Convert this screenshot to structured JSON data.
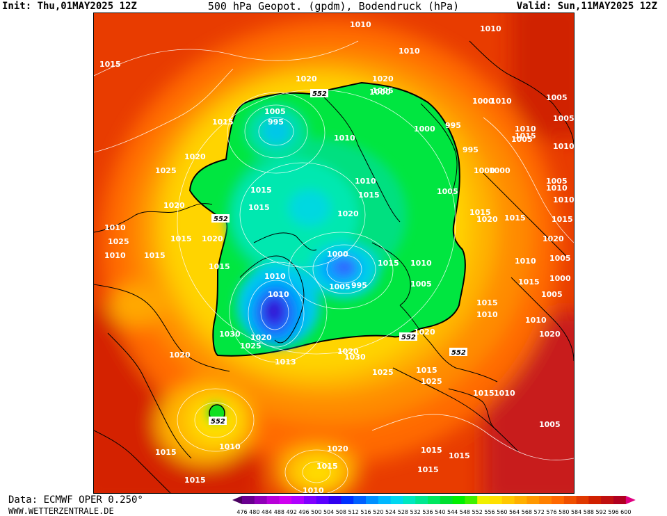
{
  "header": {
    "init": "Init: Thu,01MAY2025 12Z",
    "title": "500 hPa Geopot. (gpdm), Bodendruck (hPa)",
    "valid": "Valid: Sun,11MAY2025 12Z"
  },
  "footer": {
    "data_source": "Data: ECMWF OPER 0.250°",
    "website": "WWW.WETTERZENTRALE.DE"
  },
  "colorbar": {
    "ticks": [
      "476",
      "480",
      "484",
      "488",
      "492",
      "496",
      "500",
      "504",
      "508",
      "512",
      "516",
      "520",
      "524",
      "528",
      "532",
      "536",
      "540",
      "544",
      "548",
      "552",
      "556",
      "560",
      "564",
      "568",
      "572",
      "576",
      "580",
      "584",
      "588",
      "592",
      "596",
      "600"
    ],
    "colors": [
      "#4a0060",
      "#6a0090",
      "#9000b8",
      "#b800d8",
      "#d000f0",
      "#b000ff",
      "#8000ff",
      "#5a00ff",
      "#3000f0",
      "#0030ff",
      "#0060ff",
      "#0090ff",
      "#00b8ff",
      "#00d8f0",
      "#00e8c0",
      "#00e890",
      "#00e860",
      "#00e030",
      "#00f000",
      "#40f000",
      "#f0f000",
      "#ffe000",
      "#ffc800",
      "#ffb000",
      "#ff9800",
      "#ff8000",
      "#ff6800",
      "#f05000",
      "#e03800",
      "#d02000",
      "#c01010",
      "#b00020",
      "#e00080"
    ]
  },
  "map": {
    "geopotential_contour_label": "552",
    "pressure_labels": [
      {
        "text": "1010"
      },
      {
        "text": "1010"
      },
      {
        "text": "1015"
      },
      {
        "text": "1020"
      },
      {
        "text": "1020"
      },
      {
        "text": "1010"
      },
      {
        "text": "1005"
      },
      {
        "text": "1000"
      },
      {
        "text": "1005"
      },
      {
        "text": "1000"
      },
      {
        "text": "995"
      },
      {
        "text": "1000"
      },
      {
        "text": "1005"
      },
      {
        "text": "1015"
      },
      {
        "text": "995"
      },
      {
        "text": "1010"
      },
      {
        "text": "1005"
      },
      {
        "text": "995"
      },
      {
        "text": "1000"
      },
      {
        "text": "1000"
      },
      {
        "text": "1005"
      },
      {
        "text": "1010"
      },
      {
        "text": "1010"
      },
      {
        "text": "1020"
      },
      {
        "text": "1025"
      },
      {
        "text": "1020"
      },
      {
        "text": "1015"
      },
      {
        "text": "1005"
      },
      {
        "text": "1010"
      },
      {
        "text": "1015"
      },
      {
        "text": "1015"
      },
      {
        "text": "1015"
      },
      {
        "text": "1020"
      },
      {
        "text": "1010"
      },
      {
        "text": "1020"
      },
      {
        "text": "1015"
      },
      {
        "text": "1010"
      },
      {
        "text": "1015"
      },
      {
        "text": "1025"
      },
      {
        "text": "1000"
      },
      {
        "text": "995"
      },
      {
        "text": "1005"
      },
      {
        "text": "1015"
      },
      {
        "text": "1010"
      },
      {
        "text": "1005"
      },
      {
        "text": "1010"
      },
      {
        "text": "1010"
      },
      {
        "text": "1005"
      },
      {
        "text": "1010"
      },
      {
        "text": "1005"
      },
      {
        "text": "1015"
      },
      {
        "text": "1015"
      },
      {
        "text": "1020"
      },
      {
        "text": "1020"
      },
      {
        "text": "1030"
      },
      {
        "text": "1025"
      },
      {
        "text": "1013"
      },
      {
        "text": "1020"
      },
      {
        "text": "1030"
      },
      {
        "text": "1025"
      },
      {
        "text": "1015"
      },
      {
        "text": "1010"
      },
      {
        "text": "1015"
      },
      {
        "text": "1020"
      },
      {
        "text": "1020"
      },
      {
        "text": "1015"
      },
      {
        "text": "1015"
      },
      {
        "text": "1010"
      },
      {
        "text": "1005"
      },
      {
        "text": "1010"
      },
      {
        "text": "1015"
      },
      {
        "text": "1015"
      },
      {
        "text": "1020"
      },
      {
        "text": "1025"
      },
      {
        "text": "1015"
      },
      {
        "text": "1010"
      },
      {
        "text": "1015"
      },
      {
        "text": "1020"
      },
      {
        "text": "1015"
      },
      {
        "text": "1010"
      },
      {
        "text": "1015"
      },
      {
        "text": "1010"
      },
      {
        "text": "1020"
      },
      {
        "text": "1005"
      },
      {
        "text": "1010"
      },
      {
        "text": "1015"
      },
      {
        "text": "1015"
      },
      {
        "text": "1010"
      },
      {
        "text": "1000"
      }
    ]
  }
}
